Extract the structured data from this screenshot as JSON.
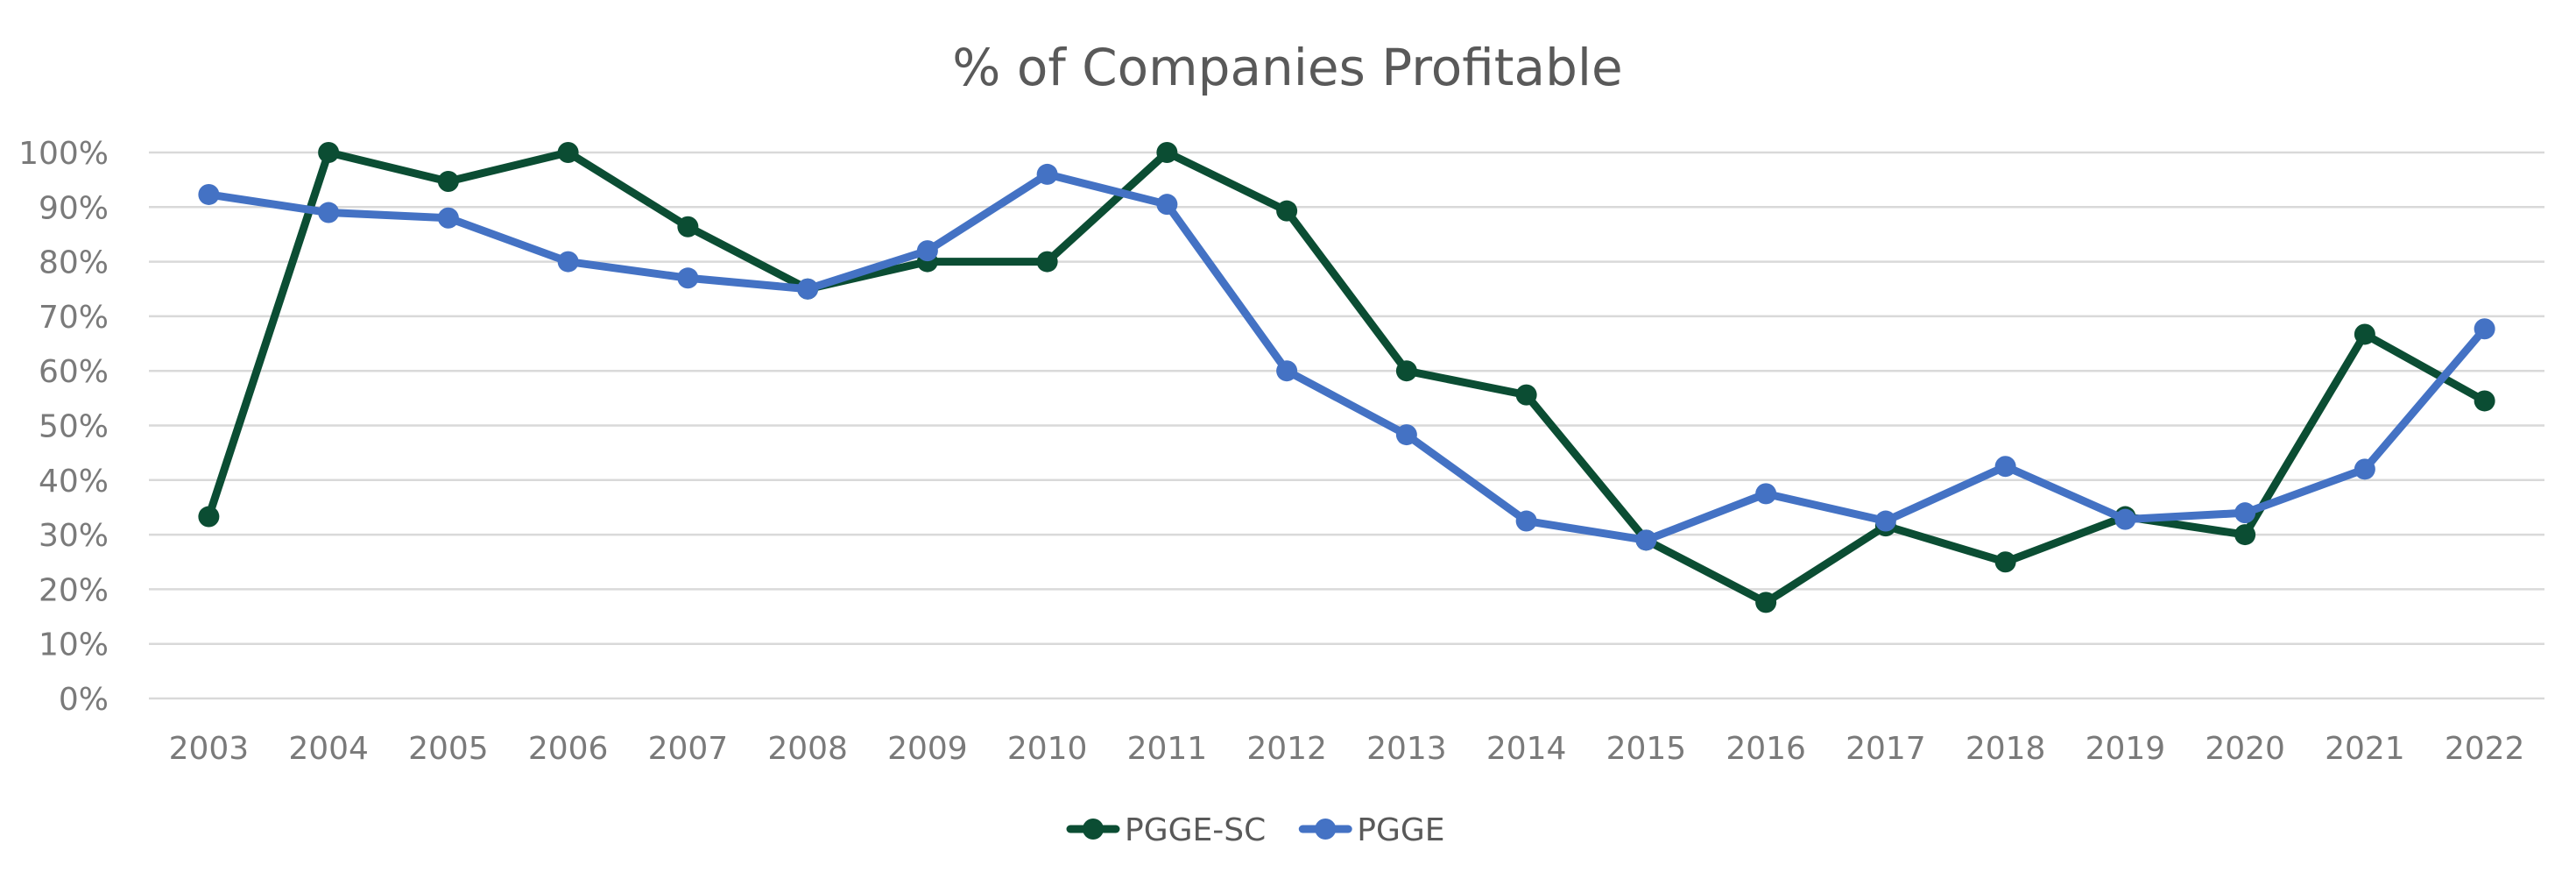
{
  "chart_data": {
    "type": "line",
    "title": "% of Companies Profitable",
    "xlabel": "",
    "ylabel": "",
    "ylim": [
      0,
      100
    ],
    "y_ticks": [
      "0%",
      "10%",
      "20%",
      "30%",
      "40%",
      "50%",
      "60%",
      "70%",
      "80%",
      "90%",
      "100%"
    ],
    "y_tick_values": [
      0,
      10,
      20,
      30,
      40,
      50,
      60,
      70,
      80,
      90,
      100
    ],
    "grid": true,
    "legend_position": "bottom-center",
    "categories": [
      "2003",
      "2004",
      "2005",
      "2006",
      "2007",
      "2008",
      "2009",
      "2010",
      "2011",
      "2012",
      "2013",
      "2014",
      "2015",
      "2016",
      "2017",
      "2018",
      "2019",
      "2020",
      "2021",
      "2022"
    ],
    "series": [
      {
        "name": "PGGE-SC",
        "color": "#0b4d33",
        "values": [
          33.3,
          100,
          94.7,
          100,
          86.4,
          75,
          80,
          80,
          100,
          89.3,
          60,
          55.6,
          29,
          17.6,
          31.6,
          25,
          33.3,
          30,
          66.7,
          54.5
        ]
      },
      {
        "name": "PGGE",
        "color": "#4472c4",
        "values": [
          92.3,
          89,
          88,
          80,
          77,
          75,
          82,
          96,
          90.5,
          60,
          48.3,
          32.5,
          29,
          37.5,
          32.5,
          42.5,
          32.8,
          34,
          42,
          67.7
        ]
      }
    ]
  }
}
